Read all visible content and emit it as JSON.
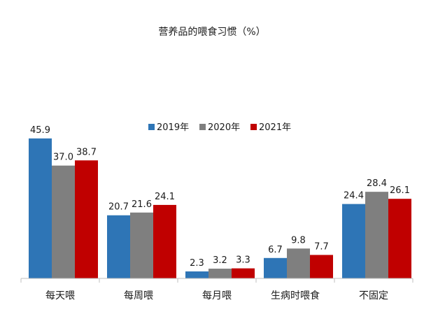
{
  "chart_data": {
    "type": "bar",
    "title": "营养品的喂食习惯（%）",
    "categories": [
      "每天喂",
      "每周喂",
      "每月喂",
      "生病时喂食",
      "不固定"
    ],
    "series": [
      {
        "name": "2019年",
        "color": "#2e75b6",
        "values": [
          45.9,
          20.7,
          2.3,
          6.7,
          24.4
        ]
      },
      {
        "name": "2020年",
        "color": "#7f7f7f",
        "values": [
          37.0,
          21.6,
          3.2,
          9.8,
          28.4
        ]
      },
      {
        "name": "2021年",
        "color": "#c00000",
        "values": [
          38.7,
          24.1,
          3.3,
          7.7,
          26.1
        ]
      }
    ],
    "value_labels": [
      [
        "45.9",
        "20.7",
        "2.3",
        "6.7",
        "24.4"
      ],
      [
        "37.0",
        "21.6",
        "3.2",
        "9.8",
        "28.4"
      ],
      [
        "38.7",
        "24.1",
        "3.3",
        "7.7",
        "26.1"
      ]
    ],
    "ylim": [
      0,
      50
    ],
    "grid": false,
    "legend_position": "top-center",
    "axis_color": "#bfbfbf",
    "label_color": "#1a1a1a"
  }
}
